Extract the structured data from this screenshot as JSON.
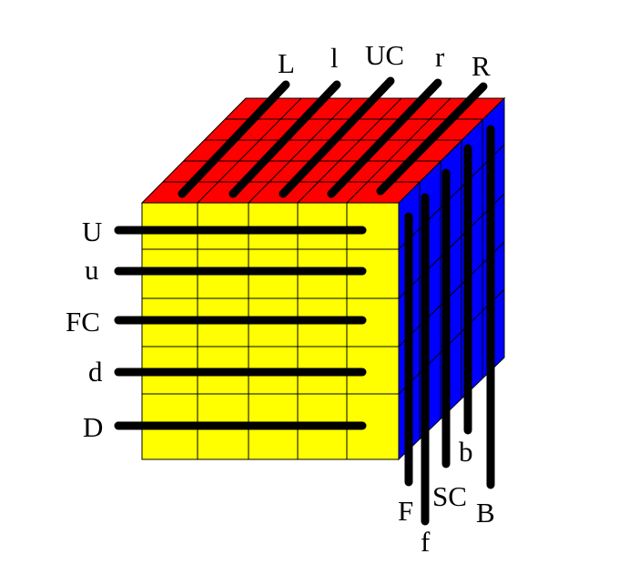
{
  "colors": {
    "front": "#ffff00",
    "top": "#ff0000",
    "side": "#0000ff",
    "grid": "#000000",
    "bar": "#000000"
  },
  "labels": {
    "top": [
      {
        "id": "L",
        "text": "L"
      },
      {
        "id": "l",
        "text": "l"
      },
      {
        "id": "UC",
        "text": "UC"
      },
      {
        "id": "r",
        "text": "r"
      },
      {
        "id": "R",
        "text": "R"
      }
    ],
    "left": [
      {
        "id": "U",
        "text": "U"
      },
      {
        "id": "u",
        "text": "u"
      },
      {
        "id": "FC",
        "text": "FC"
      },
      {
        "id": "d",
        "text": "d"
      },
      {
        "id": "D",
        "text": "D"
      }
    ],
    "bottom": [
      {
        "id": "F",
        "text": "F"
      },
      {
        "id": "f",
        "text": "f"
      },
      {
        "id": "SC",
        "text": "SC"
      },
      {
        "id": "b",
        "text": "b"
      },
      {
        "id": "B",
        "text": "B"
      }
    ]
  }
}
